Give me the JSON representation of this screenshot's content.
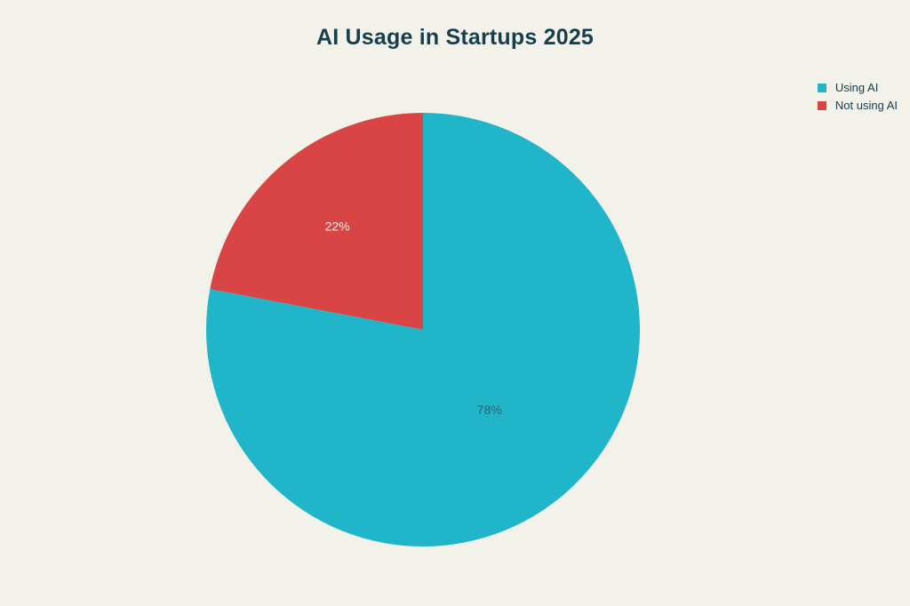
{
  "chart_data": {
    "type": "pie",
    "title": "AI Usage in Startups 2025",
    "labels": [
      "Using AI",
      "Not using AI"
    ],
    "values": [
      78,
      22
    ],
    "slice_value_labels": [
      "78%",
      "22%"
    ],
    "colors": [
      "#20b5c8",
      "#d94545"
    ],
    "slice_label_colors": [
      "#2d6470",
      "#f2efe8"
    ],
    "start_angle_deg": -90,
    "direction": "clockwise",
    "legend_position": "top-right",
    "background_color": "#f2f1ea",
    "title_color": "#17404d",
    "legend_text_color": "#17404d"
  }
}
